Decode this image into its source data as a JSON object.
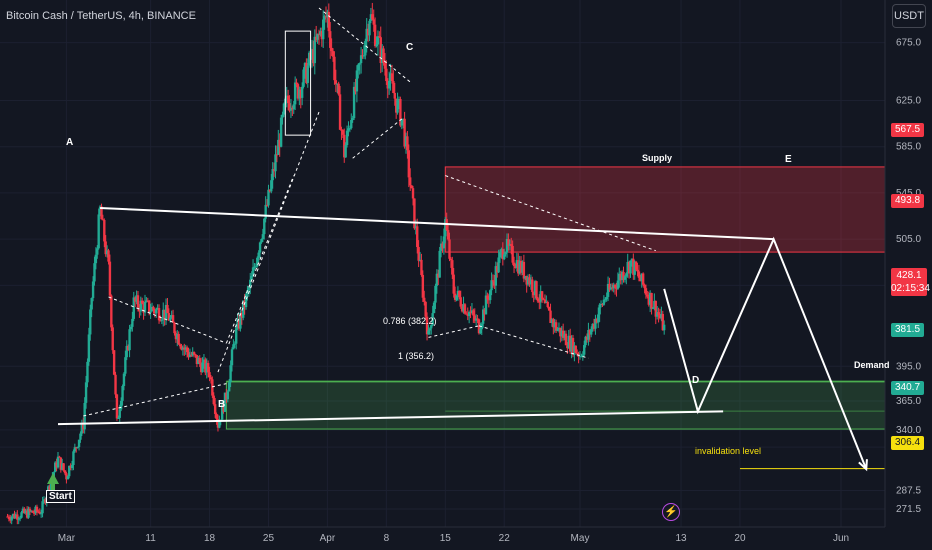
{
  "header": {
    "symbol_title": "Bitcoin Cash / TetherUS, 4h, BINANCE",
    "currency": "USDT"
  },
  "price_axis": {
    "ticks": [
      "675.0",
      "625.0",
      "585.0",
      "545.0",
      "505.0",
      "465.0",
      "395.0",
      "365.0",
      "340.0",
      "325.0",
      "287.5",
      "271.5"
    ]
  },
  "time_axis": {
    "ticks": [
      "Mar",
      "11",
      "18",
      "25",
      "Apr",
      "8",
      "15",
      "22",
      "May",
      "13",
      "20",
      "Jun"
    ]
  },
  "price_tags": {
    "supply_top": "567.5",
    "supply_bottom": "493.8",
    "demand_top": "381.5",
    "demand_bottom": "340.7",
    "invalidation": "306.4",
    "current_price": "428.1",
    "countdown": "02:15:34"
  },
  "labels": {
    "A": "A",
    "B": "B",
    "C": "C",
    "D": "D",
    "E": "E",
    "supply": "Supply",
    "demand": "Demand",
    "fib_786": "0.786 (382.2)",
    "fib_1": "1 (356.2)",
    "invalidation": "invalidation level",
    "start": "Start"
  },
  "icons": {
    "alert": "lightning-icon"
  },
  "colors": {
    "background": "#131722",
    "up": "#22ab94",
    "down": "#f23645",
    "supply": "#f23645",
    "demand": "#4caf50",
    "invalidation": "#f6e00e"
  },
  "chart_data": {
    "type": "candlestick",
    "title": "Bitcoin Cash / TetherUS, 4h, BINANCE",
    "price_anchors": [
      {
        "date": "2024-02-23",
        "price": 265
      },
      {
        "date": "2024-02-27",
        "price": 270
      },
      {
        "date": "2024-02-29",
        "price": 315
      },
      {
        "date": "2024-03-01",
        "price": 300
      },
      {
        "date": "2024-03-03",
        "price": 345
      },
      {
        "date": "2024-03-04",
        "price": 455
      },
      {
        "date": "2024-03-05",
        "price": 530
      },
      {
        "date": "2024-03-06",
        "price": 480
      },
      {
        "date": "2024-03-07",
        "price": 345
      },
      {
        "date": "2024-03-09",
        "price": 450
      },
      {
        "date": "2024-03-13",
        "price": 440
      },
      {
        "date": "2024-03-15",
        "price": 410
      },
      {
        "date": "2024-03-18",
        "price": 390
      },
      {
        "date": "2024-03-19",
        "price": 345
      },
      {
        "date": "2024-03-20",
        "price": 370
      },
      {
        "date": "2024-03-21",
        "price": 420
      },
      {
        "date": "2024-03-23",
        "price": 470
      },
      {
        "date": "2024-03-25",
        "price": 540
      },
      {
        "date": "2024-03-27",
        "price": 620
      },
      {
        "date": "2024-03-29",
        "price": 640
      },
      {
        "date": "2024-04-01",
        "price": 700
      },
      {
        "date": "2024-04-03",
        "price": 580
      },
      {
        "date": "2024-04-06",
        "price": 700
      },
      {
        "date": "2024-04-08",
        "price": 650
      },
      {
        "date": "2024-04-10",
        "price": 605
      },
      {
        "date": "2024-04-12",
        "price": 480
      },
      {
        "date": "2024-04-13",
        "price": 420
      },
      {
        "date": "2024-04-15",
        "price": 520
      },
      {
        "date": "2024-04-16",
        "price": 460
      },
      {
        "date": "2024-04-19",
        "price": 430
      },
      {
        "date": "2024-04-22",
        "price": 500
      },
      {
        "date": "2024-04-25",
        "price": 470
      },
      {
        "date": "2024-04-28",
        "price": 430
      },
      {
        "date": "2024-05-01",
        "price": 405
      },
      {
        "date": "2024-05-04",
        "price": 455
      },
      {
        "date": "2024-05-07",
        "price": 485
      },
      {
        "date": "2024-05-10",
        "price": 445
      },
      {
        "date": "2024-05-11",
        "price": 428
      }
    ],
    "zones": [
      {
        "name": "Supply",
        "from_date": "2024-04-15",
        "from": 493.8,
        "to": 567.5
      },
      {
        "name": "Demand",
        "from_date": "2024-03-20",
        "from": 340.7,
        "to": 381.5
      }
    ],
    "levels": [
      {
        "label": "0.786 (382.2)",
        "price": 382.2
      },
      {
        "label": "1 (356.2)",
        "price": 356.2
      },
      {
        "label": "invalidation level",
        "price": 306.4
      }
    ],
    "projection": [
      {
        "date": "2024-05-11",
        "price": 462
      },
      {
        "date": "2024-05-15",
        "price": 356
      },
      {
        "date": "2024-05-24",
        "price": 505
      },
      {
        "date": "2024-06-04",
        "price": 306
      }
    ],
    "trendlines": [
      {
        "from_date": "2024-03-05",
        "from": 532,
        "to_date": "2024-05-24",
        "to": 505
      },
      {
        "from_date": "2024-02-29",
        "from": 345,
        "to_date": "2024-05-18",
        "to": 356
      }
    ],
    "current_price": 428.1,
    "y_axis": {
      "min": 262,
      "max": 705
    }
  }
}
